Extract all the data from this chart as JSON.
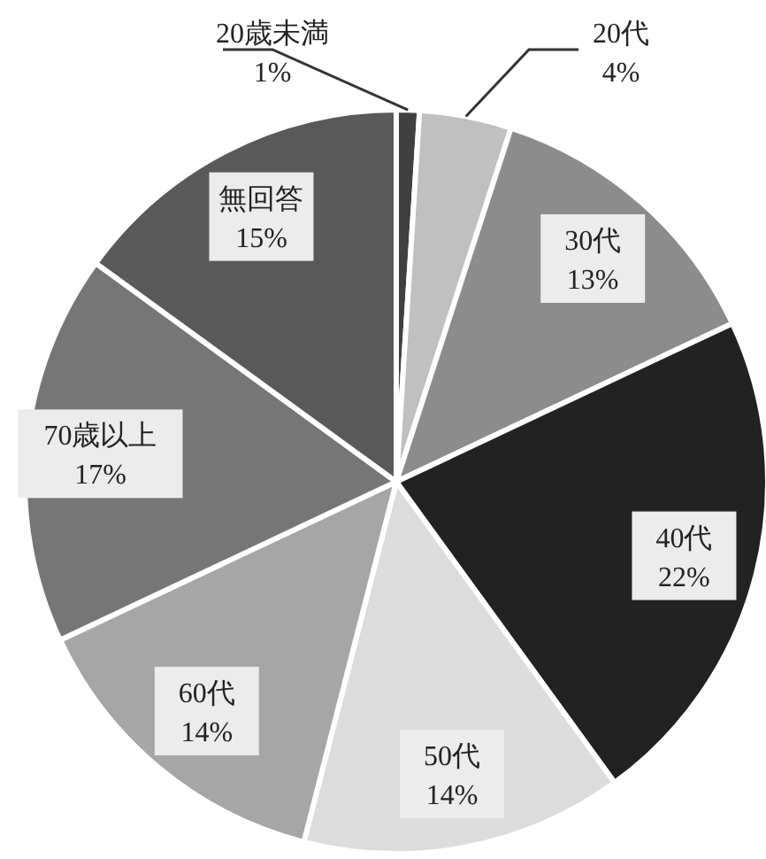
{
  "chart_data": {
    "type": "pie",
    "categories": [
      "20歳未満",
      "20代",
      "30代",
      "40代",
      "50代",
      "60代",
      "70歳以上",
      "無回答"
    ],
    "values": [
      1,
      4,
      13,
      22,
      14,
      14,
      17,
      15
    ],
    "value_labels": [
      "1%",
      "4%",
      "13%",
      "22%",
      "14%",
      "14%",
      "17%",
      "15%"
    ],
    "colors": [
      "#404040",
      "#c0c0c0",
      "#8c8c8c",
      "#222222",
      "#dcdcdc",
      "#a6a6a6",
      "#767676",
      "#595959"
    ],
    "legend": false
  }
}
